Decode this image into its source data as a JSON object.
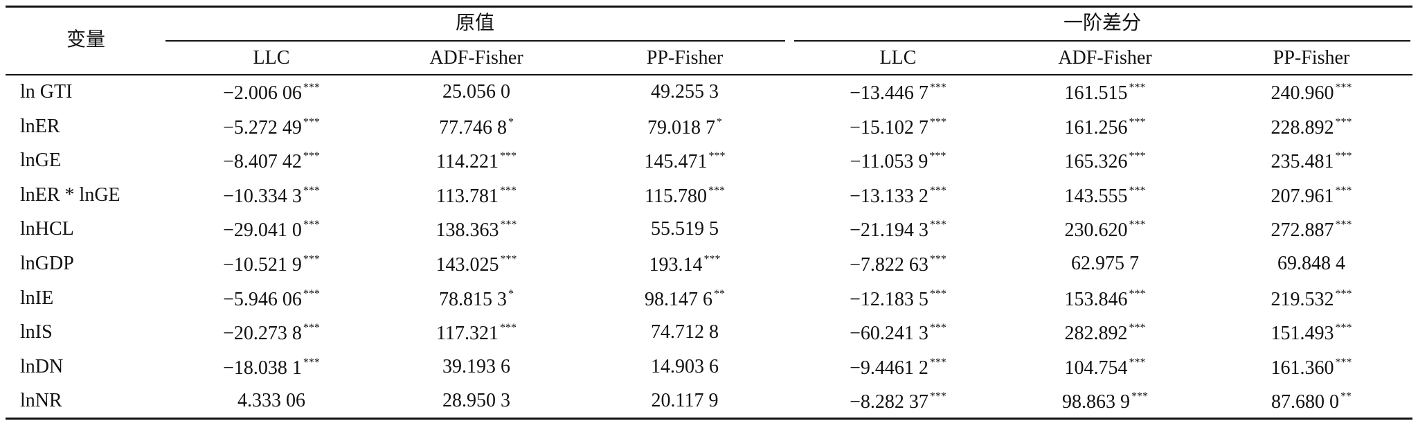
{
  "table": {
    "stub_header": "变量",
    "groups": [
      "原值",
      "一阶差分"
    ],
    "columns": [
      "LLC",
      "ADF-Fisher",
      "PP-Fisher",
      "LLC",
      "ADF-Fisher",
      "PP-Fisher"
    ],
    "rows": [
      {
        "label": "ln GTI",
        "cells": [
          {
            "value": "−2.006 06",
            "sig": "***"
          },
          {
            "value": "25.056 0"
          },
          {
            "value": "49.255 3"
          },
          {
            "value": "−13.446 7",
            "sig": "***"
          },
          {
            "value": "161.515",
            "sig": "***"
          },
          {
            "value": "240.960",
            "sig": "***"
          }
        ]
      },
      {
        "label": "lnER",
        "cells": [
          {
            "value": "−5.272 49",
            "sig": "***"
          },
          {
            "value": "77.746 8",
            "sig": "*"
          },
          {
            "value": "79.018 7",
            "sig": "*"
          },
          {
            "value": "−15.102 7",
            "sig": "***"
          },
          {
            "value": "161.256",
            "sig": "***"
          },
          {
            "value": "228.892",
            "sig": "***"
          }
        ]
      },
      {
        "label": "lnGE",
        "cells": [
          {
            "value": "−8.407 42",
            "sig": "***"
          },
          {
            "value": "114.221",
            "sig": "***"
          },
          {
            "value": "145.471",
            "sig": "***"
          },
          {
            "value": "−11.053 9",
            "sig": "***"
          },
          {
            "value": "165.326",
            "sig": "***"
          },
          {
            "value": "235.481",
            "sig": "***"
          }
        ]
      },
      {
        "label": "lnER * lnGE",
        "cells": [
          {
            "value": "−10.334 3",
            "sig": "***"
          },
          {
            "value": "113.781",
            "sig": "***"
          },
          {
            "value": "115.780",
            "sig": "***"
          },
          {
            "value": "−13.133 2",
            "sig": "***"
          },
          {
            "value": "143.555",
            "sig": "***"
          },
          {
            "value": "207.961",
            "sig": "***"
          }
        ]
      },
      {
        "label": "lnHCL",
        "cells": [
          {
            "value": "−29.041 0",
            "sig": "***"
          },
          {
            "value": "138.363",
            "sig": "***"
          },
          {
            "value": "55.519 5"
          },
          {
            "value": "−21.194 3",
            "sig": "***"
          },
          {
            "value": "230.620",
            "sig": "***"
          },
          {
            "value": "272.887",
            "sig": "***"
          }
        ]
      },
      {
        "label": "lnGDP",
        "cells": [
          {
            "value": "−10.521 9",
            "sig": "***"
          },
          {
            "value": "143.025",
            "sig": "***"
          },
          {
            "value": "193.14",
            "sig": "***"
          },
          {
            "value": "−7.822 63",
            "sig": "***"
          },
          {
            "value": "62.975 7"
          },
          {
            "value": "69.848 4"
          }
        ]
      },
      {
        "label": "lnIE",
        "cells": [
          {
            "value": "−5.946 06",
            "sig": "***"
          },
          {
            "value": "78.815 3",
            "sig": "*"
          },
          {
            "value": "98.147 6",
            "sig": "**"
          },
          {
            "value": "−12.183 5",
            "sig": "***"
          },
          {
            "value": "153.846",
            "sig": "***"
          },
          {
            "value": "219.532",
            "sig": "***"
          }
        ]
      },
      {
        "label": "lnIS",
        "cells": [
          {
            "value": "−20.273 8",
            "sig": "***"
          },
          {
            "value": "117.321",
            "sig": "***"
          },
          {
            "value": "74.712 8"
          },
          {
            "value": "−60.241 3",
            "sig": "***"
          },
          {
            "value": "282.892",
            "sig": "***"
          },
          {
            "value": "151.493",
            "sig": "***"
          }
        ]
      },
      {
        "label": "lnDN",
        "cells": [
          {
            "value": "−18.038 1",
            "sig": "***"
          },
          {
            "value": "39.193 6"
          },
          {
            "value": "14.903 6"
          },
          {
            "value": "−9.4461 2",
            "sig": "***"
          },
          {
            "value": "104.754",
            "sig": "***"
          },
          {
            "value": "161.360",
            "sig": "***"
          }
        ]
      },
      {
        "label": "lnNR",
        "cells": [
          {
            "value": "4.333 06"
          },
          {
            "value": "28.950 3"
          },
          {
            "value": "20.117 9"
          },
          {
            "value": "−8.282 37",
            "sig": "***"
          },
          {
            "value": "98.863 9",
            "sig": "***"
          },
          {
            "value": "87.680 0",
            "sig": "**"
          }
        ]
      }
    ]
  }
}
